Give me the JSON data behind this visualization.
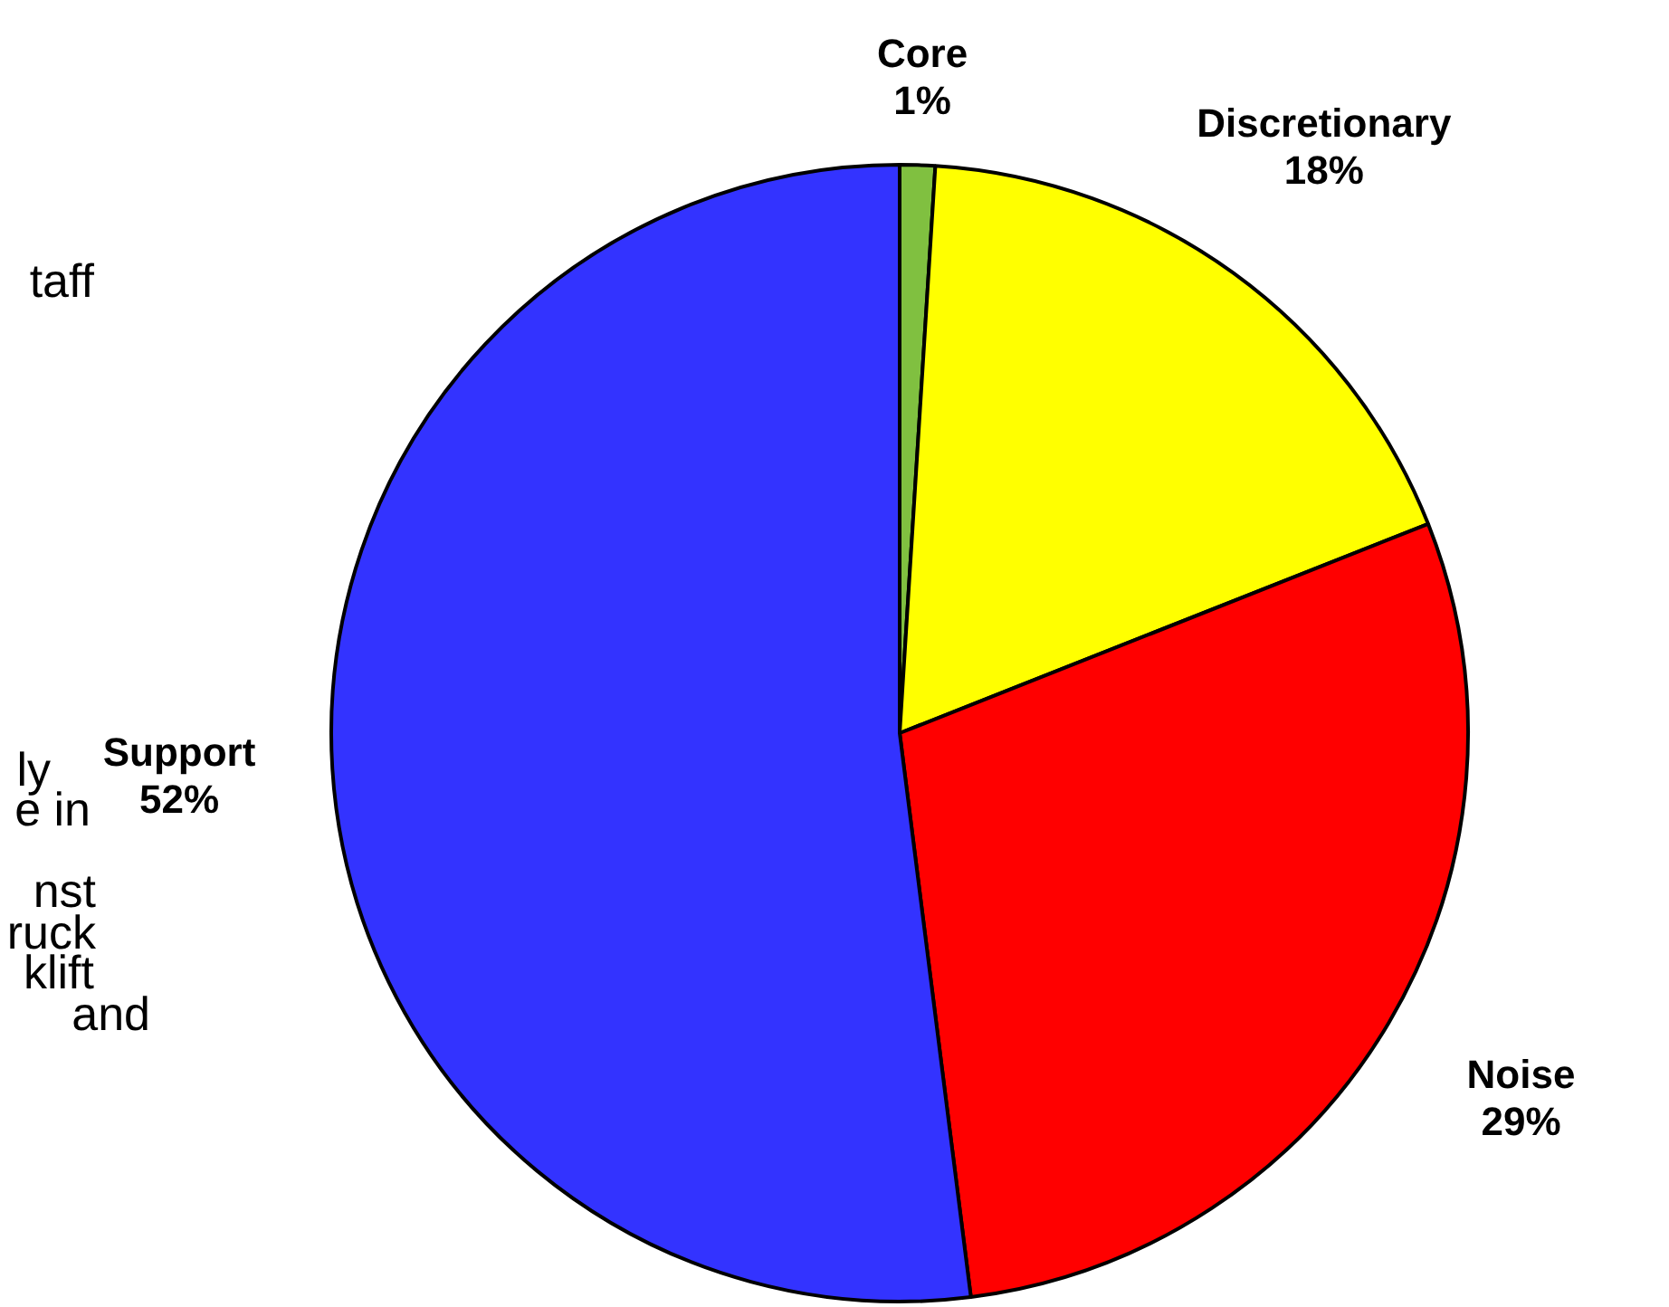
{
  "chart_data": {
    "type": "pie",
    "categories": [
      "Core",
      "Discretionary",
      "Noise",
      "Support"
    ],
    "values": [
      1,
      18,
      29,
      52
    ],
    "value_labels": [
      "1%",
      "18%",
      "29%",
      "52%"
    ],
    "colors": [
      "#80c040",
      "#ffff00",
      "#ff0000",
      "#3333ff"
    ],
    "annotations": [
      "taff",
      "ly",
      "e in",
      "nst",
      "ruck",
      "klift",
      "and"
    ],
    "legend": false
  }
}
